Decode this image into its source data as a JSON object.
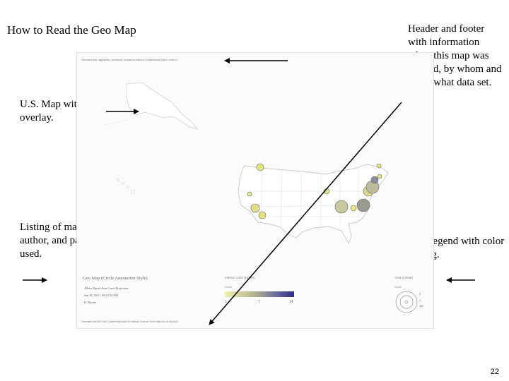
{
  "slide": {
    "title": "How to Read the Geo Map",
    "page_number": "22"
  },
  "callouts": {
    "map": "U.S. Map with data overlay.",
    "listing": "Listing of map type, author, and parameters used.",
    "header_footer": "Header and footer with information when this map was created, by whom and using what data set.",
    "legend": "Map legend with color coding."
  },
  "map_image": {
    "header_text": "Generated from: aggregation: predictions; comparison values in Congressional District; version 2",
    "footer_text": "Generated with Sci2 Tool | Cyberinfrastructure for Network Science Center (http://cns.iu.edu/sci2)",
    "map_type": "Geo Map (Circle Annotation Style)",
    "projection": "Albers Equal-Area Conic Projection",
    "date": "Jun 10, 2011 | 09:22:34 AM",
    "author": "K. Borner",
    "interior_legend": {
      "title": "Interior Color (Linear)",
      "label": "Count",
      "ticks": [
        "1",
        "7",
        "14"
      ],
      "colors": [
        "#f0f0b0",
        "#b8b890",
        "#6a6a9c",
        "#2c2c88"
      ]
    },
    "area_legend": {
      "title": "Area (Linear)",
      "label": "Count",
      "values": [
        "1",
        "7",
        "14"
      ]
    }
  }
}
